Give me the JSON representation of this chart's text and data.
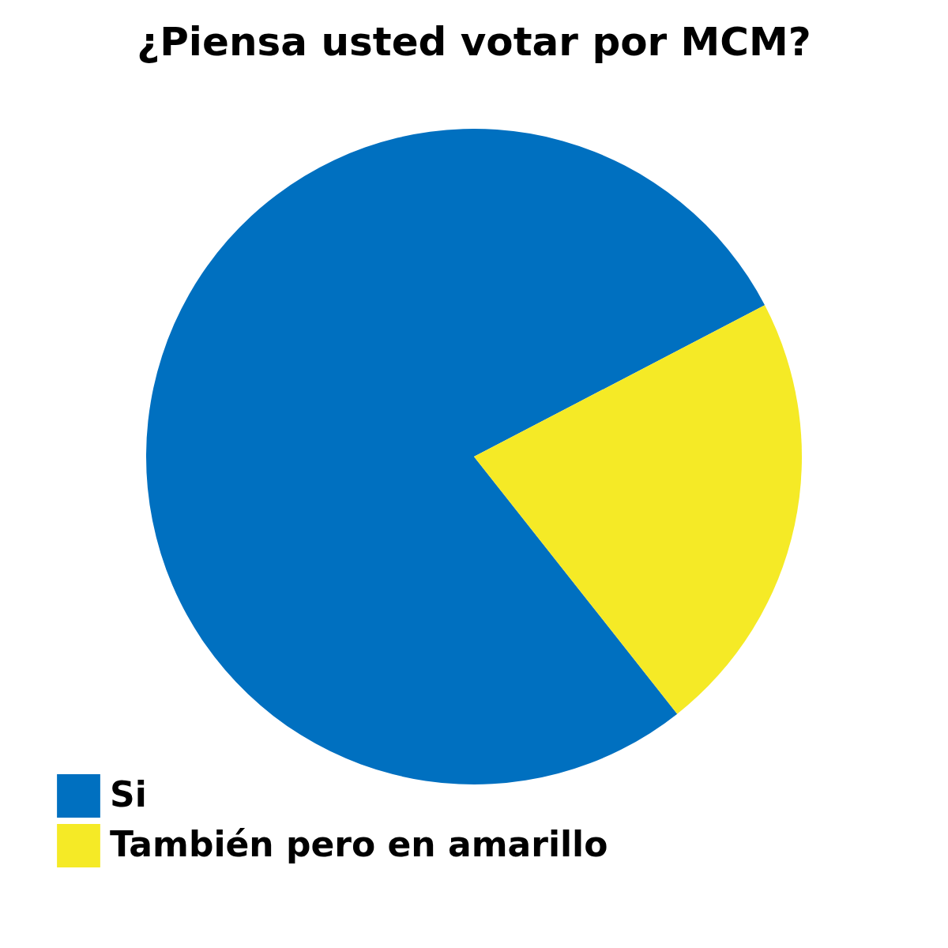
{
  "chart_data": {
    "type": "pie",
    "title": "¿Piensa usted votar por MCM?",
    "categories": [
      "Si",
      "También pero en amarillo"
    ],
    "values": [
      78,
      22
    ],
    "colors": [
      "#0070c0",
      "#f5ea26"
    ],
    "legend": "bottom left"
  }
}
